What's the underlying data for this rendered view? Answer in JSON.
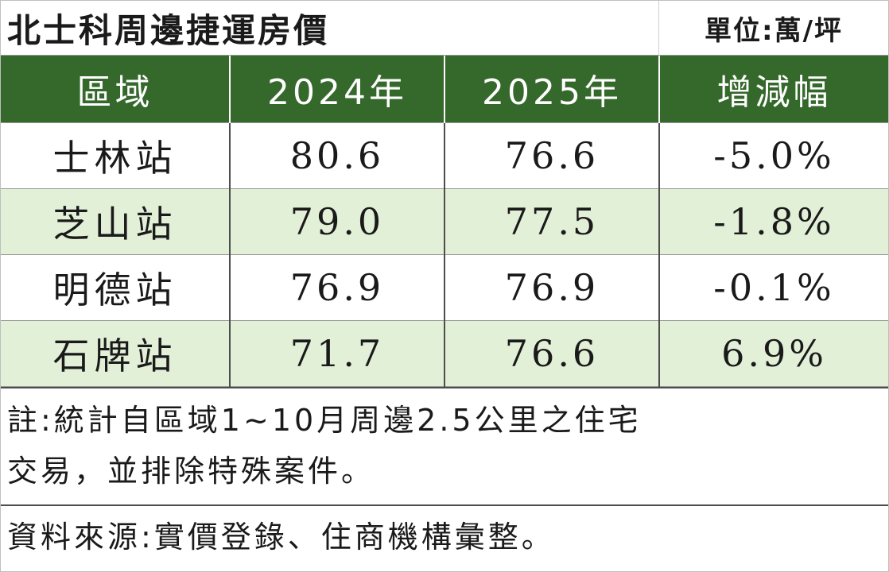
{
  "title": "北士科周邊捷運房價",
  "unit": "單位:萬/坪",
  "table": {
    "headers": [
      "區域",
      "2024年",
      "2025年",
      "增減幅"
    ],
    "rows": [
      [
        "士林站",
        "80.6",
        "76.6",
        "-5.0%"
      ],
      [
        "芝山站",
        "79.0",
        "77.5",
        "-1.8%"
      ],
      [
        "明德站",
        "76.9",
        "76.9",
        "-0.1%"
      ],
      [
        "石牌站",
        "71.7",
        "76.6",
        "6.9%"
      ]
    ]
  },
  "colors": {
    "header_bg": "#35682b",
    "alt_row_bg": "#e3f0d8"
  },
  "note_line1": "註:統計自區域1~10月周邊2.5公里之住宅",
  "note_line2": "交易，並排除特殊案件。",
  "source": "資料來源:實價登錄、住商機構彙整。"
}
